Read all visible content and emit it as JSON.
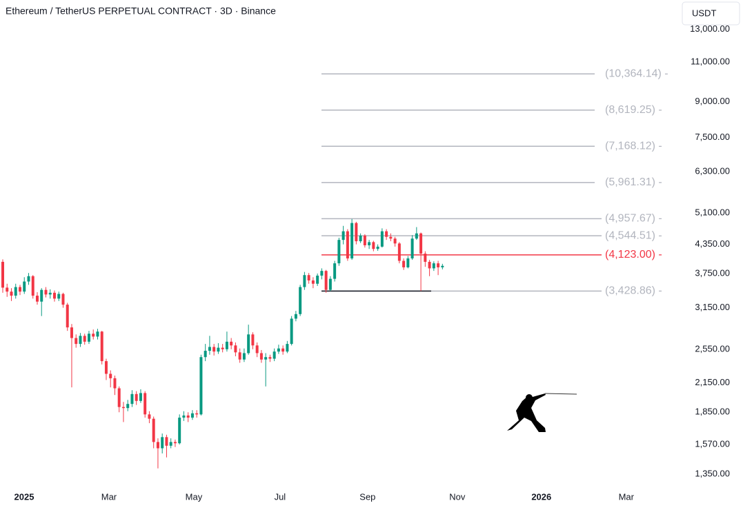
{
  "chart_data": {
    "type": "candlestick",
    "title": "Ethereum / TetherUS PERPETUAL CONTRACT · 3D · Binance",
    "currency": "USDT",
    "log_scale": true,
    "up_color": "#089981",
    "down_color": "#f23645",
    "ylim": [
      1272,
      15100
    ],
    "yticks": [
      {
        "value": 13000,
        "label": "13,000.00"
      },
      {
        "value": 11000,
        "label": "11,000.00"
      },
      {
        "value": 9000,
        "label": "9,000.00"
      },
      {
        "value": 7500,
        "label": "7,500.00"
      },
      {
        "value": 6300,
        "label": "6,300.00"
      },
      {
        "value": 5100,
        "label": "5,100.00"
      },
      {
        "value": 4350,
        "label": "4,350.00"
      },
      {
        "value": 3750,
        "label": "3,750.00"
      },
      {
        "value": 3150,
        "label": "3,150.00"
      },
      {
        "value": 2550,
        "label": "2,550.00"
      },
      {
        "value": 2150,
        "label": "2,150.00"
      },
      {
        "value": 1850,
        "label": "1,850.00"
      },
      {
        "value": 1570,
        "label": "1,570.00"
      },
      {
        "value": 1350,
        "label": "1,350.00"
      }
    ],
    "xlim": [
      -0.64,
      157
    ],
    "xticks": [
      {
        "value": 4.96,
        "label": "2025"
      },
      {
        "value": 24.64,
        "label": "Mar"
      },
      {
        "value": 44.32,
        "label": "May"
      },
      {
        "value": 64.32,
        "label": "Jul"
      },
      {
        "value": 84.64,
        "label": "Sep"
      },
      {
        "value": 105.44,
        "label": "Nov"
      },
      {
        "value": 124.96,
        "label": "2026"
      },
      {
        "value": 144.64,
        "label": "Mar"
      }
    ],
    "open": [
      3980,
      3490,
      3420,
      3350,
      3500,
      3420,
      3600,
      3700,
      3350,
      3250,
      3450,
      3370,
      3400,
      3300,
      3380,
      3200,
      2850,
      2700,
      2620,
      2730,
      2650,
      2760,
      2720,
      2790,
      2400,
      2250,
      2200,
      2090,
      1900,
      1890,
      1930,
      2030,
      1960,
      2040,
      1830,
      1790,
      1590,
      1540,
      1630,
      1560,
      1590,
      1580,
      1800,
      1820,
      1800,
      1840,
      1830,
      2450,
      2530,
      2580,
      2520,
      2570,
      2550,
      2650,
      2600,
      2510,
      2420,
      2500,
      2750,
      2600,
      2500,
      2420,
      2450,
      2430,
      2520,
      2560,
      2520,
      2620,
      2980,
      3050,
      3500,
      3720,
      3620,
      3560,
      3710,
      3800,
      3450,
      3650,
      3950,
      4450,
      4650,
      4050,
      4850,
      4420,
      4550,
      4330,
      4400,
      4250,
      4300,
      4650,
      4520,
      4480,
      4370,
      4000,
      3870,
      4050,
      4480,
      4600,
      4150,
      3980,
      3850,
      3950,
      3870
    ],
    "high": [
      4030,
      3560,
      3480,
      3560,
      3540,
      3680,
      3760,
      3720,
      3410,
      3480,
      3500,
      3460,
      3440,
      3420,
      3400,
      3230,
      2900,
      2750,
      2770,
      2760,
      2800,
      2820,
      2830,
      2800,
      2430,
      2290,
      2230,
      2110,
      1950,
      1970,
      2070,
      2060,
      2080,
      2060,
      1860,
      1810,
      1620,
      1660,
      1650,
      1620,
      1610,
      1830,
      1860,
      1850,
      1870,
      1870,
      2480,
      2620,
      2730,
      2620,
      2630,
      2620,
      2790,
      2700,
      2640,
      2560,
      2560,
      2890,
      2780,
      2640,
      2540,
      2500,
      2480,
      2560,
      2610,
      2600,
      2660,
      3020,
      3100,
      3540,
      3780,
      3760,
      3680,
      3750,
      3850,
      3820,
      3700,
      4000,
      4500,
      4780,
      4700,
      4950,
      4880,
      4600,
      4580,
      4450,
      4430,
      4350,
      4720,
      4700,
      4600,
      4520,
      4400,
      4050,
      4100,
      4560,
      4750,
      4620,
      4200,
      4020,
      3990,
      4000,
      3940
    ],
    "low": [
      3400,
      3330,
      3260,
      3300,
      3360,
      3380,
      3540,
      3300,
      3200,
      3020,
      3320,
      3300,
      3250,
      3260,
      3150,
      2800,
      2100,
      2570,
      2580,
      2610,
      2620,
      2680,
      2680,
      2360,
      2180,
      2100,
      2020,
      1850,
      1760,
      1860,
      1900,
      1920,
      1940,
      1800,
      1750,
      1540,
      1390,
      1500,
      1470,
      1540,
      1550,
      1570,
      1770,
      1760,
      1780,
      1800,
      1820,
      2400,
      2480,
      2470,
      2490,
      2510,
      2520,
      2550,
      2460,
      2380,
      2390,
      2480,
      2550,
      2450,
      2380,
      2110,
      2390,
      2400,
      2490,
      2480,
      2500,
      2600,
      2940,
      3020,
      3450,
      3560,
      3480,
      3520,
      3640,
      3400,
      3430,
      3600,
      3900,
      4350,
      4000,
      4020,
      4350,
      4380,
      4280,
      4250,
      4200,
      4210,
      4280,
      4450,
      4420,
      4300,
      3950,
      3820,
      3850,
      4020,
      4450,
      3430,
      3880,
      3700,
      3800,
      3720,
      3830
    ],
    "close": [
      3490,
      3420,
      3350,
      3500,
      3420,
      3600,
      3700,
      3350,
      3250,
      3450,
      3370,
      3400,
      3300,
      3380,
      3200,
      2850,
      2700,
      2620,
      2730,
      2650,
      2760,
      2720,
      2790,
      2400,
      2250,
      2200,
      2090,
      1900,
      1890,
      1930,
      2030,
      1960,
      2040,
      1830,
      1790,
      1590,
      1540,
      1630,
      1560,
      1590,
      1580,
      1800,
      1820,
      1800,
      1840,
      1830,
      2450,
      2530,
      2580,
      2520,
      2570,
      2550,
      2650,
      2600,
      2510,
      2420,
      2500,
      2750,
      2600,
      2500,
      2420,
      2450,
      2430,
      2520,
      2560,
      2520,
      2620,
      2980,
      3050,
      3500,
      3720,
      3620,
      3560,
      3710,
      3800,
      3450,
      3650,
      3950,
      4450,
      4650,
      4050,
      4850,
      4420,
      4550,
      4330,
      4400,
      4250,
      4300,
      4650,
      4520,
      4480,
      4370,
      4000,
      3870,
      4050,
      4480,
      4600,
      4150,
      3980,
      3850,
      3950,
      3870,
      3900
    ],
    "levels": [
      {
        "value": 10364.14,
        "label": "(10,364.14) -",
        "color": "#b2b5be"
      },
      {
        "value": 8619.25,
        "label": "(8,619.25) -",
        "color": "#b2b5be"
      },
      {
        "value": 7168.12,
        "label": "(7,168.12) -",
        "color": "#b2b5be"
      },
      {
        "value": 5961.31,
        "label": "(5,961.31) -",
        "color": "#b2b5be"
      },
      {
        "value": 4957.67,
        "label": "(4,957.67) -",
        "color": "#b2b5be"
      },
      {
        "value": 4544.51,
        "label": "(4,544.51) -",
        "color": "#b2b5be"
      },
      {
        "value": 4123.0,
        "label": "(4,123.00) -",
        "color": "#f23645"
      },
      {
        "value": 3428.86,
        "label": "(3,428.86) -",
        "color": "#131722"
      }
    ]
  }
}
